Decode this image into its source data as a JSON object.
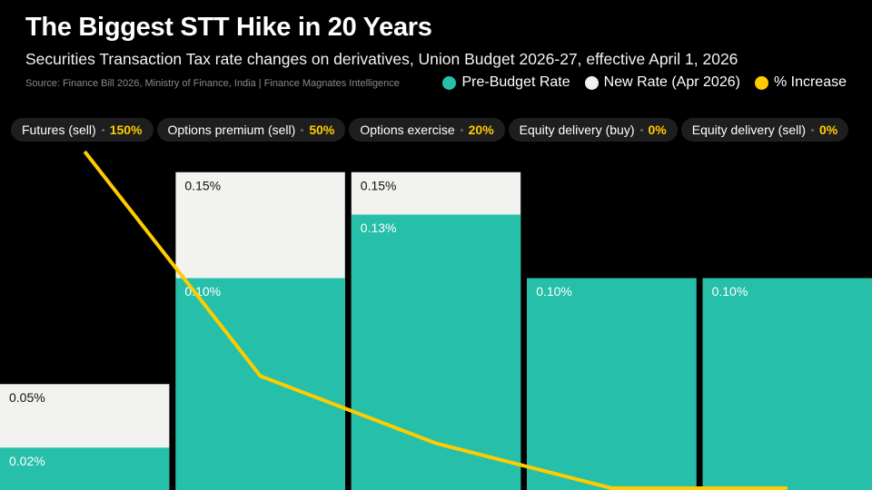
{
  "chart_data": {
    "type": "bar",
    "title": "The Biggest STT Hike in 20 Years",
    "subtitle": "Securities Transaction Tax rate changes on derivatives, Union Budget 2026-27, effective April 1, 2026",
    "source": "Source: Finance Bill 2026, Ministry of Finance, India | Finance Magnates Intelligence",
    "categories": [
      "Futures (sell)",
      "Options premium (sell)",
      "Options exercise",
      "Equity delivery (buy)",
      "Equity delivery (sell)"
    ],
    "series": [
      {
        "name": "Pre-Budget Rate",
        "color": "#26bfa9",
        "values": [
          0.02,
          0.1,
          0.13,
          0.1,
          0.1
        ],
        "value_labels": [
          "0.02%",
          "0.10%",
          "0.13%",
          "0.10%",
          "0.10%"
        ]
      },
      {
        "name": "New Rate (Apr 2026)",
        "color": "#f2f2f0",
        "values": [
          0.05,
          0.15,
          0.15,
          0.1,
          0.1
        ],
        "value_labels": [
          "0.05%",
          "0.15%",
          "0.15%",
          "0.10%",
          "0.10%"
        ]
      },
      {
        "name": "% Increase",
        "color": "#ffcc00",
        "axis": "y2",
        "values": [
          150,
          50,
          20,
          0,
          0
        ],
        "value_labels": [
          "150%",
          "50%",
          "20%",
          "0%",
          "0%"
        ]
      }
    ],
    "ylim": [
      0,
      0.2
    ],
    "y2lim": [
      0,
      150
    ],
    "grid": false
  }
}
